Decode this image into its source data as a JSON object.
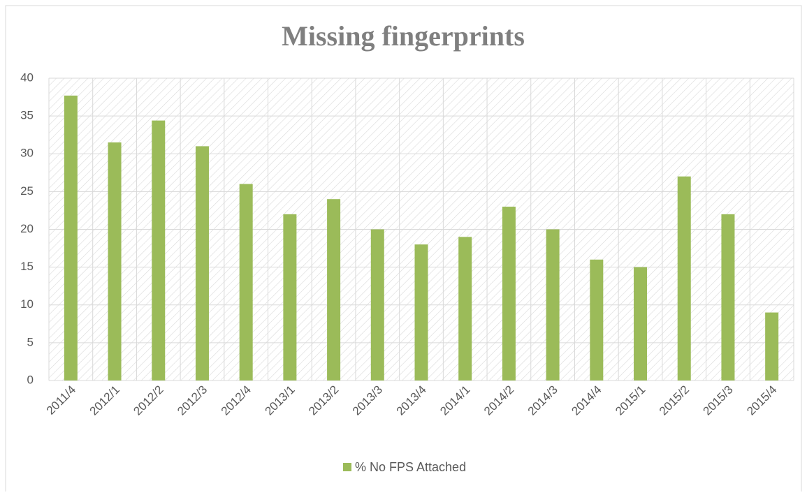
{
  "chart_data": {
    "type": "bar",
    "title": "Missing fingerprints",
    "categories": [
      "2011/4",
      "2012/1",
      "2012/2",
      "2012/3",
      "2012/4",
      "2013/1",
      "2013/2",
      "2013/3",
      "2013/4",
      "2014/1",
      "2014/2",
      "2014/3",
      "2014/4",
      "2015/1",
      "2015/2",
      "2015/3",
      "2015/4"
    ],
    "series": [
      {
        "name": "% No FPS Attached",
        "color": "#9bbb59",
        "values": [
          37.7,
          31.5,
          34.4,
          31,
          26,
          22,
          24,
          20,
          18,
          19,
          23,
          20,
          16,
          15,
          27,
          22,
          9
        ]
      }
    ],
    "ylim": [
      0,
      40
    ],
    "yticks": [
      0,
      5,
      10,
      15,
      20,
      25,
      30,
      35,
      40
    ],
    "grid": true,
    "legend": "bottom"
  }
}
